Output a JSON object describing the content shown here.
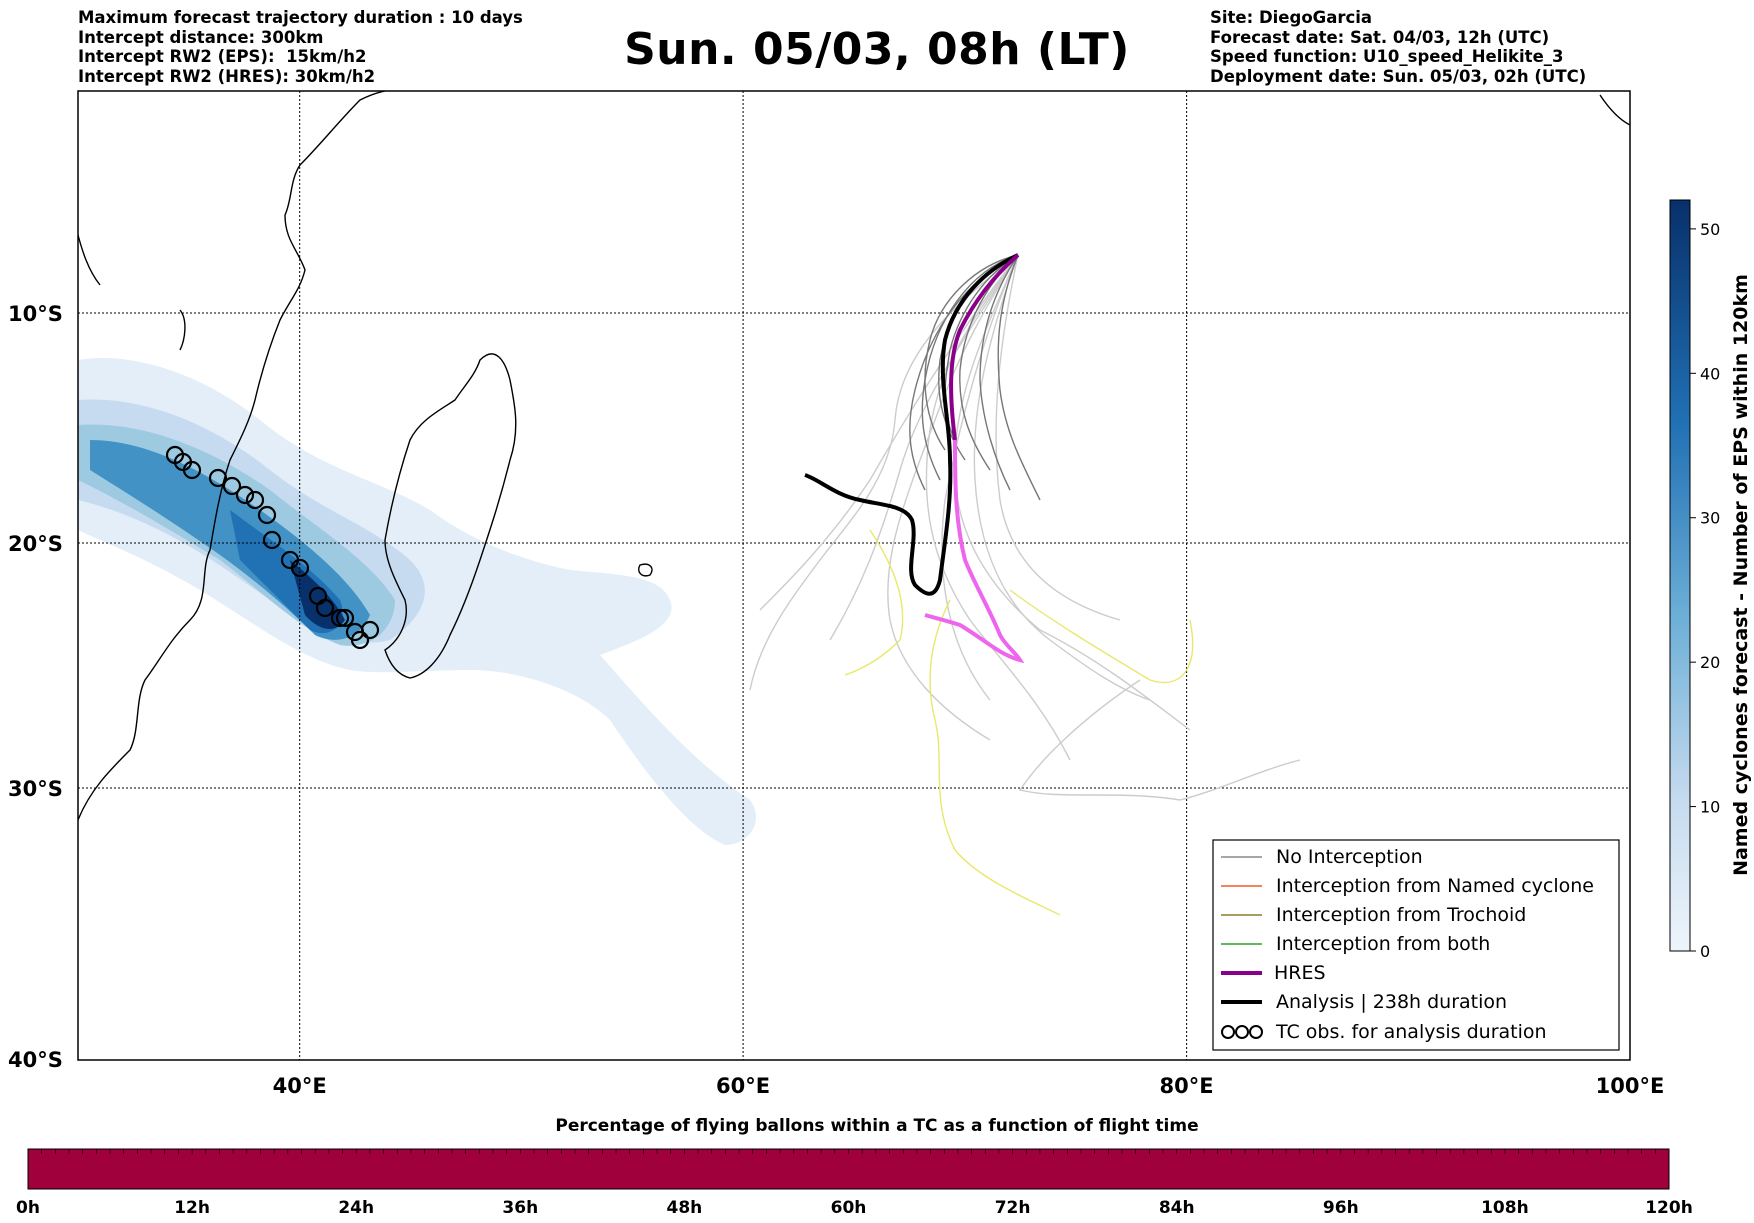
{
  "header_left": [
    "Maximum forecast trajectory duration : 10 days",
    "Intercept distance: 300km",
    "Intercept RW2 (EPS):  15km/h2",
    "Intercept RW2 (HRES): 30km/h2"
  ],
  "header_right": [
    "Site: DiegoGarcia",
    "Forecast date: Sat. 04/03, 12h (UTC)",
    "Speed function: U10_speed_Helikite_3",
    "Deployment date: Sun. 05/03, 02h (UTC)"
  ],
  "title": "Sun. 05/03, 08h (LT)",
  "map": {
    "lon_range": [
      30,
      100
    ],
    "lat_range": [
      -40,
      0
    ],
    "lon_ticks": [
      "40°E",
      "60°E",
      "80°E",
      "100°E"
    ],
    "lat_ticks": [
      "10°S",
      "20°S",
      "30°S",
      "40°S"
    ],
    "grid": "dotted"
  },
  "legend": {
    "placement": "lower-right",
    "items": [
      {
        "label": "No Interception",
        "color": "#888888",
        "style": "thin"
      },
      {
        "label": "Interception from Named cyclone",
        "color": "#f05a28",
        "style": "thin"
      },
      {
        "label": "Interception from Trochoid",
        "color": "#8b7d2a",
        "style": "thin"
      },
      {
        "label": "Interception from both",
        "color": "#2ca02c",
        "style": "thin"
      },
      {
        "label": "HRES",
        "color": "#8b008b",
        "style": "thick"
      },
      {
        "label": "Analysis | 238h duration",
        "color": "#000000",
        "style": "thick"
      },
      {
        "label": "TC obs. for analysis duration",
        "color": "#000000",
        "style": "tc-symbols"
      }
    ]
  },
  "colorbar_right": {
    "label": "Named cyclones forecast - Number of EPS within 120km",
    "ticks": [
      "0",
      "10",
      "20",
      "30",
      "40",
      "50"
    ],
    "range": [
      0,
      52
    ],
    "colors": [
      "#e8f1fa",
      "#08306b"
    ]
  },
  "colorbar_bottom": {
    "title": "Percentage of flying ballons within a TC as a function of flight time",
    "ticks": [
      "0h",
      "12h",
      "24h",
      "36h",
      "48h",
      "60h",
      "72h",
      "84h",
      "96h",
      "108h",
      "120h"
    ],
    "color": "#a0003c"
  }
}
